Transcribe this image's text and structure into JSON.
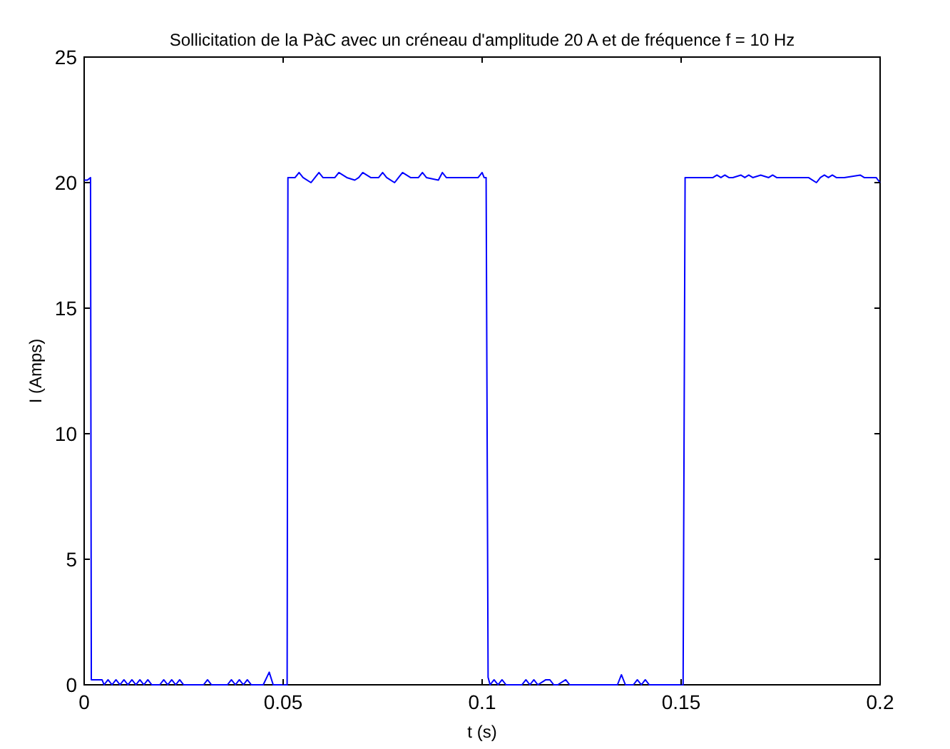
{
  "chart_data": {
    "type": "line",
    "title": "Sollicitation de la PàC avec un créneau d'amplitude 20 A et de fréquence f = 10 Hz",
    "xlabel": "t (s)",
    "ylabel": "I (Amps)",
    "xlim": [
      0,
      0.2
    ],
    "ylim": [
      0,
      25
    ],
    "xticks": [
      0,
      0.05,
      0.1,
      0.15,
      0.2
    ],
    "yticks": [
      0,
      5,
      10,
      15,
      20,
      25
    ],
    "grid": false,
    "series": [
      {
        "color": "#0000ff",
        "x": [
          0,
          0.0008,
          0.0016,
          0.0018,
          0.0045,
          0.005,
          0.006,
          0.007,
          0.008,
          0.009,
          0.01,
          0.011,
          0.012,
          0.013,
          0.014,
          0.015,
          0.016,
          0.017,
          0.019,
          0.02,
          0.021,
          0.022,
          0.023,
          0.024,
          0.025,
          0.03,
          0.031,
          0.032,
          0.036,
          0.037,
          0.038,
          0.039,
          0.04,
          0.041,
          0.042,
          0.045,
          0.0465,
          0.0475,
          0.051,
          0.0512,
          0.053,
          0.054,
          0.055,
          0.057,
          0.058,
          0.059,
          0.06,
          0.063,
          0.064,
          0.066,
          0.068,
          0.069,
          0.07,
          0.072,
          0.074,
          0.075,
          0.076,
          0.078,
          0.079,
          0.08,
          0.082,
          0.084,
          0.085,
          0.086,
          0.089,
          0.09,
          0.091,
          0.093,
          0.099,
          0.1,
          0.1005,
          0.101,
          0.1015,
          0.102,
          0.103,
          0.104,
          0.105,
          0.106,
          0.11,
          0.111,
          0.112,
          0.113,
          0.114,
          0.116,
          0.117,
          0.118,
          0.119,
          0.121,
          0.122,
          0.129,
          0.134,
          0.135,
          0.136,
          0.138,
          0.139,
          0.14,
          0.141,
          0.142,
          0.1505,
          0.151,
          0.153,
          0.158,
          0.159,
          0.16,
          0.161,
          0.162,
          0.163,
          0.165,
          0.166,
          0.167,
          0.168,
          0.17,
          0.172,
          0.173,
          0.174,
          0.176,
          0.181,
          0.182,
          0.184,
          0.185,
          0.186,
          0.187,
          0.188,
          0.189,
          0.19,
          0.191,
          0.195,
          0.196,
          0.197,
          0.198,
          0.199,
          0.2
        ],
        "values": [
          20.1,
          20.1,
          20.2,
          0.2,
          0.2,
          0,
          0.2,
          0,
          0.2,
          0,
          0.2,
          0,
          0.2,
          0,
          0.2,
          0,
          0.2,
          0,
          0,
          0.2,
          0,
          0.2,
          0,
          0.2,
          0,
          0,
          0.2,
          0,
          0,
          0.2,
          0,
          0.2,
          0,
          0.2,
          0,
          0,
          0.5,
          0,
          0,
          20.2,
          20.2,
          20.4,
          20.2,
          20.0,
          20.2,
          20.4,
          20.2,
          20.2,
          20.4,
          20.2,
          20.1,
          20.2,
          20.4,
          20.2,
          20.2,
          20.4,
          20.2,
          20.0,
          20.2,
          20.4,
          20.2,
          20.2,
          20.4,
          20.2,
          20.1,
          20.4,
          20.2,
          20.2,
          20.2,
          20.4,
          20.2,
          20.2,
          0.3,
          0,
          0.2,
          0,
          0.2,
          0,
          0,
          0.2,
          0,
          0.2,
          0,
          0.2,
          0.2,
          0,
          0,
          0.2,
          0,
          0,
          0,
          0.4,
          0,
          0,
          0.2,
          0,
          0.2,
          0,
          0,
          20.2,
          20.2,
          20.2,
          20.3,
          20.2,
          20.3,
          20.2,
          20.2,
          20.3,
          20.2,
          20.3,
          20.2,
          20.3,
          20.2,
          20.3,
          20.2,
          20.2,
          20.2,
          20.2,
          20.0,
          20.2,
          20.3,
          20.2,
          20.3,
          20.2,
          20.2,
          20.2,
          20.3,
          20.2,
          20.2,
          20.2,
          20.2,
          20.0
        ]
      }
    ]
  }
}
